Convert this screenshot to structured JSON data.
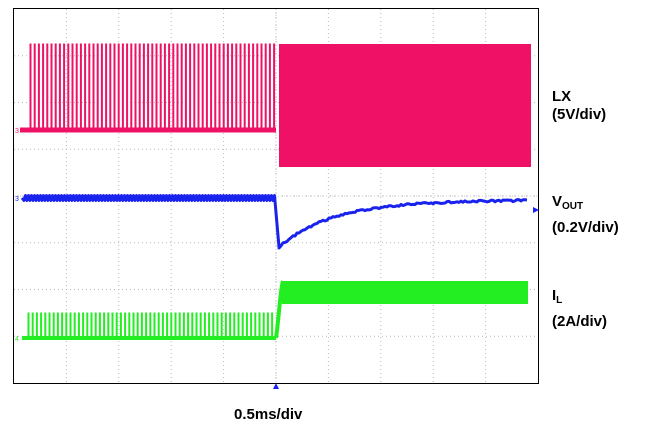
{
  "chart_data": {
    "type": "line",
    "grid": true,
    "x_divisions": 10,
    "y_divisions": 8,
    "xlabel": "0.5ms/div",
    "trace_colors": {
      "LX": "#ee1166",
      "VOUT": "#1a22ee",
      "IL": "#22ee22"
    },
    "traces": [
      {
        "key": "LX",
        "name": "LX",
        "scale": "(5V/div)",
        "before_step": "sparse switching pulses (light load)",
        "after_step": "continuous switching (heavy load)"
      },
      {
        "key": "VOUT",
        "name_main": "V",
        "name_sub": "OUT",
        "scale": "(0.2V/div)",
        "before_step": "steady with small ripple",
        "after_step": "undershoot then recovery"
      },
      {
        "key": "IL",
        "name_main": "I",
        "name_sub": "L",
        "scale": "(2A/div)",
        "before_step": "low current with short pulses",
        "after_step": "step up to high current band"
      }
    ],
    "channel_markers": [
      "3",
      "3",
      "4"
    ]
  }
}
